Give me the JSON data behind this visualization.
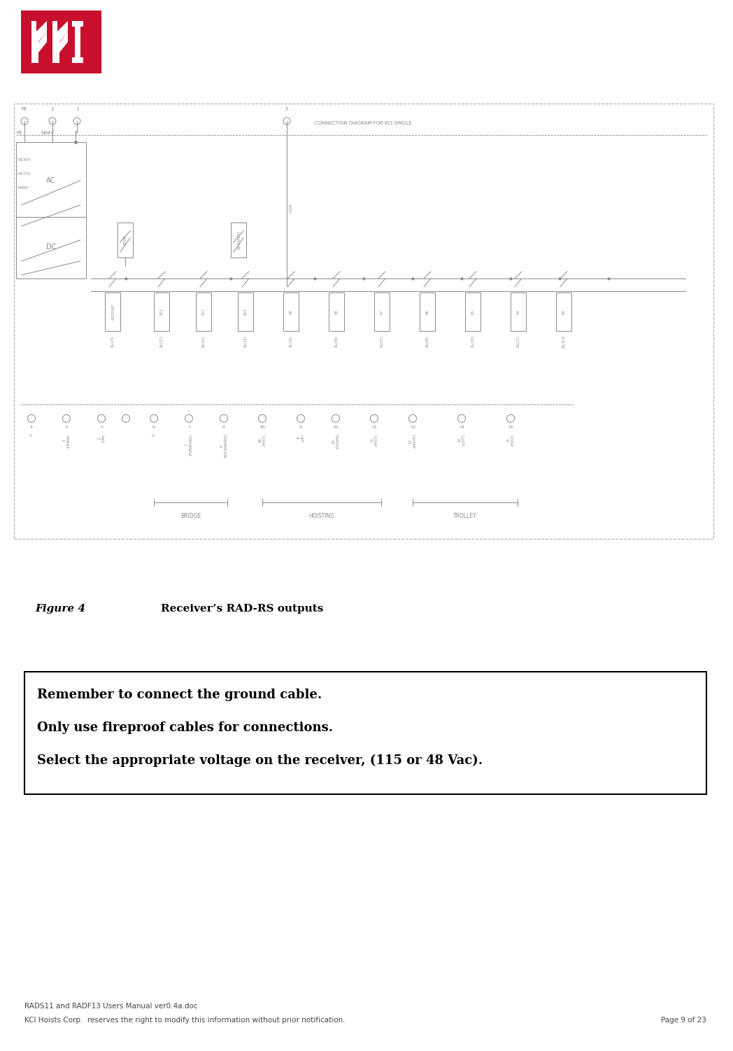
{
  "bg_color": "#ffffff",
  "logo_color": "#c8102e",
  "fig_width": 10.48,
  "fig_height": 15.02,
  "title_text": "Figure 4",
  "title_label": "Receiver’s RAD-RS outputs",
  "warning_lines": [
    "Remember to connect the ground cable.",
    "Only use fireproof cables for connections.",
    "Select the appropriate voltage on the receiver, (115 or 48 Vac)."
  ],
  "footer_left1": "RADS11 and RADF13 Users Manual ver0.4a.doc",
  "footer_left2": "KCI Hoists Corp.  reserves the right to modify this information without prior notification.",
  "footer_right": "Page 9 of 23"
}
